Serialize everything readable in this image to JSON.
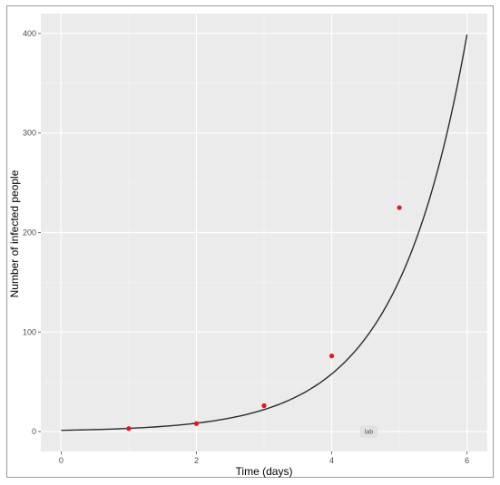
{
  "chart_data": {
    "type": "scatter",
    "title": "",
    "xlabel": "Time (days)",
    "ylabel": "Number of infected people",
    "xlim": [
      -0.3,
      6.3
    ],
    "ylim": [
      -20,
      420
    ],
    "x_ticks": [
      0,
      2,
      4,
      6
    ],
    "y_ticks": [
      0,
      100,
      200,
      300,
      400
    ],
    "x_tick_labels": [
      "0",
      "2",
      "4",
      "6"
    ],
    "y_tick_labels": [
      "0",
      "100",
      "200",
      "300",
      "400"
    ],
    "grid": true,
    "legend": "none",
    "series": [
      {
        "kind": "points",
        "color": "#e8141b",
        "x": [
          1,
          2,
          3,
          4,
          5
        ],
        "y": [
          3,
          8,
          26,
          76,
          225
        ]
      },
      {
        "kind": "fitted-curve",
        "color": "#2b2b2b",
        "model": "exponential",
        "a": 1.22,
        "b": 0.965,
        "x_range": [
          0,
          6
        ]
      }
    ],
    "annotations": [
      {
        "text": "lab",
        "x": 4.55,
        "y": 0
      }
    ],
    "colors": {
      "panel_background": "#ebebeb",
      "grid_major": "#ffffff",
      "grid_minor": "#f5f5f5",
      "point": "#e8141b",
      "curve": "#2b2b2b"
    }
  }
}
